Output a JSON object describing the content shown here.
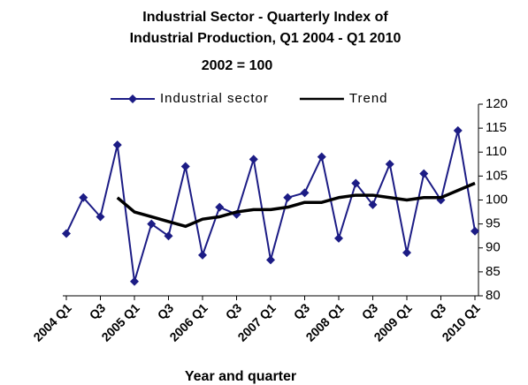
{
  "chart_data": {
    "type": "line",
    "title": [
      "Industrial Sector - Quarterly Index of",
      "Industrial Production, Q1 2004 - Q1 2010"
    ],
    "subtitle": "2002 = 100",
    "x_label": "Year and quarter",
    "categories": [
      "2004 Q1",
      null,
      "Q3",
      null,
      "2005 Q1",
      null,
      "Q3",
      null,
      "2006 Q1",
      null,
      "Q3",
      null,
      "2007 Q1",
      null,
      "Q3",
      null,
      "2008 Q1",
      null,
      "Q3",
      null,
      "2009 Q1",
      null,
      "Q3",
      null,
      "2010 Q1"
    ],
    "series": [
      {
        "name": "Industrial sector",
        "color": "#1c1c85",
        "marker": "diamond",
        "values": [
          93,
          100.5,
          96.5,
          111.5,
          83,
          95,
          92.5,
          107,
          88.5,
          98.5,
          97,
          108.5,
          87.5,
          100.5,
          101.5,
          109,
          92,
          103.5,
          99,
          107.5,
          89,
          105.5,
          100,
          114.5,
          93.5
        ]
      },
      {
        "name": "Trend",
        "color": "#000000",
        "values": [
          null,
          null,
          null,
          100.5,
          97.5,
          96.5,
          95.5,
          94.5,
          96,
          96.5,
          97.5,
          98,
          98,
          98.5,
          99.5,
          99.5,
          100.5,
          101,
          101,
          100.5,
          100,
          100.5,
          100.5,
          102,
          103.5
        ]
      }
    ],
    "ylim": [
      80,
      120
    ],
    "yticks": [
      80,
      85,
      90,
      95,
      100,
      105,
      110,
      115,
      120
    ],
    "y_axis_side": "right",
    "legend": "top",
    "grid": false
  }
}
